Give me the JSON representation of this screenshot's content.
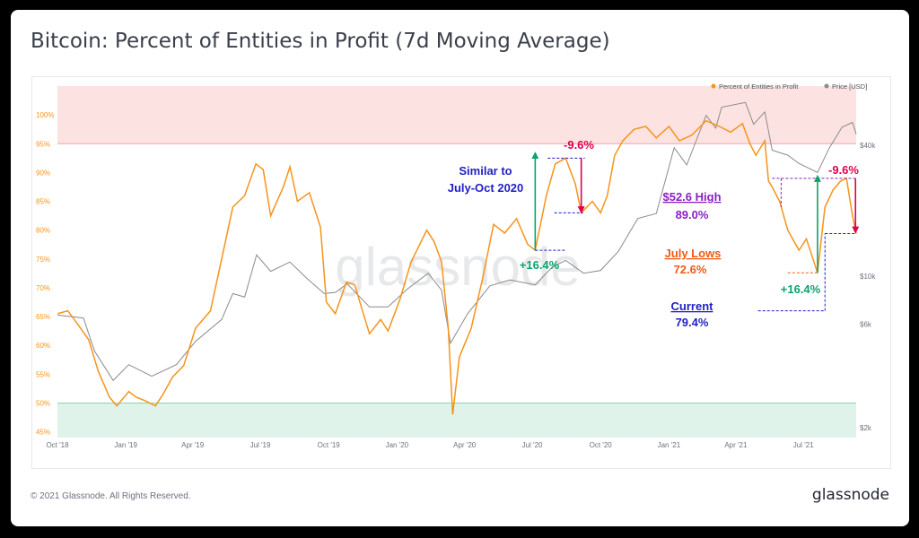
{
  "page": {
    "title": "Bitcoin: Percent of Entities in Profit (7d Moving Average)",
    "footer": "© 2021 Glassnode. All Rights Reserved.",
    "logo": "glassnode",
    "watermark": "glassnode"
  },
  "chart_data": {
    "type": "line",
    "title": "Bitcoin: Percent of Entities in Profit (7d Moving Average)",
    "x_ticks": [
      "Oct '18",
      "Jan '19",
      "Apr '19",
      "Jul '19",
      "Oct '19",
      "Jan '20",
      "Apr '20",
      "Jul '20",
      "Oct '20",
      "Jan '21",
      "Apr '21",
      "Jul '21"
    ],
    "x_range": [
      "2018-10-01",
      "2021-09-10"
    ],
    "left_axis": {
      "ticks": [
        "45%",
        "50%",
        "55%",
        "60%",
        "65%",
        "70%",
        "75%",
        "80%",
        "85%",
        "90%",
        "95%",
        "100%"
      ],
      "range": [
        44,
        105
      ]
    },
    "right_axis": {
      "ticks": [
        "$2k",
        "$6k",
        "$10k",
        "$40k"
      ],
      "scale": "log",
      "range": [
        1800,
        75000
      ]
    },
    "legend": {
      "placement": "top-right",
      "items": [
        {
          "label": "Percent of Entities in Profit",
          "color": "#f7931a"
        },
        {
          "label": "Price [USD]",
          "color": "#8a8a8a"
        }
      ]
    },
    "bands": [
      {
        "from": 95,
        "to": 105,
        "color": "#fde2e2"
      },
      {
        "from": 44,
        "to": 50,
        "color": "#dff3ea"
      }
    ],
    "series": [
      {
        "name": "Percent of Entities in Profit",
        "color": "#f7931a",
        "points": [
          [
            "2018-10-01",
            65.5
          ],
          [
            "2018-10-15",
            66.0
          ],
          [
            "2018-11-01",
            63.0
          ],
          [
            "2018-11-12",
            61.0
          ],
          [
            "2018-11-25",
            55.5
          ],
          [
            "2018-12-10",
            51.0
          ],
          [
            "2018-12-20",
            49.5
          ],
          [
            "2019-01-05",
            52.0
          ],
          [
            "2019-01-15",
            51.0
          ],
          [
            "2019-01-25",
            50.5
          ],
          [
            "2019-02-10",
            49.5
          ],
          [
            "2019-02-20",
            51.5
          ],
          [
            "2019-03-05",
            54.5
          ],
          [
            "2019-03-20",
            56.5
          ],
          [
            "2019-04-05",
            63.0
          ],
          [
            "2019-04-25",
            66.0
          ],
          [
            "2019-05-10",
            75.0
          ],
          [
            "2019-05-25",
            84.0
          ],
          [
            "2019-06-10",
            86.0
          ],
          [
            "2019-06-25",
            91.5
          ],
          [
            "2019-07-05",
            90.5
          ],
          [
            "2019-07-15",
            82.5
          ],
          [
            "2019-08-01",
            87.5
          ],
          [
            "2019-08-10",
            91.0
          ],
          [
            "2019-08-20",
            85.0
          ],
          [
            "2019-09-05",
            86.5
          ],
          [
            "2019-09-20",
            80.5
          ],
          [
            "2019-09-28",
            67.5
          ],
          [
            "2019-10-10",
            65.5
          ],
          [
            "2019-10-25",
            71.0
          ],
          [
            "2019-11-05",
            70.5
          ],
          [
            "2019-11-25",
            62.0
          ],
          [
            "2019-12-10",
            64.5
          ],
          [
            "2019-12-20",
            62.5
          ],
          [
            "2020-01-05",
            68.0
          ],
          [
            "2020-01-20",
            74.5
          ],
          [
            "2020-02-10",
            80.0
          ],
          [
            "2020-02-20",
            78.0
          ],
          [
            "2020-03-01",
            74.5
          ],
          [
            "2020-03-10",
            63.0
          ],
          [
            "2020-03-16",
            48.0
          ],
          [
            "2020-03-25",
            58.0
          ],
          [
            "2020-04-10",
            63.0
          ],
          [
            "2020-04-25",
            71.5
          ],
          [
            "2020-05-10",
            81.0
          ],
          [
            "2020-05-25",
            79.5
          ],
          [
            "2020-06-10",
            82.0
          ],
          [
            "2020-06-25",
            77.5
          ],
          [
            "2020-07-05",
            76.5
          ],
          [
            "2020-07-20",
            86.0
          ],
          [
            "2020-08-01",
            91.5
          ],
          [
            "2020-08-15",
            92.5
          ],
          [
            "2020-08-28",
            88.0
          ],
          [
            "2020-09-05",
            83.0
          ],
          [
            "2020-09-20",
            85.0
          ],
          [
            "2020-10-01",
            83.0
          ],
          [
            "2020-10-10",
            86.0
          ],
          [
            "2020-10-20",
            93.0
          ],
          [
            "2020-10-31",
            95.5
          ],
          [
            "2020-11-15",
            97.5
          ],
          [
            "2020-12-01",
            98.0
          ],
          [
            "2020-12-15",
            96.0
          ],
          [
            "2021-01-01",
            98.0
          ],
          [
            "2021-01-15",
            95.5
          ],
          [
            "2021-02-01",
            96.5
          ],
          [
            "2021-02-20",
            99.0
          ],
          [
            "2021-03-10",
            98.0
          ],
          [
            "2021-03-25",
            97.0
          ],
          [
            "2021-04-10",
            98.5
          ],
          [
            "2021-04-20",
            95.0
          ],
          [
            "2021-04-28",
            93.0
          ],
          [
            "2021-05-10",
            95.5
          ],
          [
            "2021-05-15",
            88.5
          ],
          [
            "2021-05-20",
            87.5
          ],
          [
            "2021-05-30",
            85.0
          ],
          [
            "2021-06-10",
            80.0
          ],
          [
            "2021-06-25",
            76.5
          ],
          [
            "2021-07-05",
            78.5
          ],
          [
            "2021-07-20",
            72.6
          ],
          [
            "2021-07-30",
            84.0
          ],
          [
            "2021-08-10",
            87.0
          ],
          [
            "2021-08-20",
            88.5
          ],
          [
            "2021-08-28",
            89.0
          ],
          [
            "2021-09-05",
            82.5
          ],
          [
            "2021-09-10",
            79.4
          ]
        ]
      },
      {
        "name": "Price [USD]",
        "color": "#8a8a8a",
        "points": [
          [
            "2018-10-01",
            6600
          ],
          [
            "2018-11-05",
            6400
          ],
          [
            "2018-11-20",
            4500
          ],
          [
            "2018-12-15",
            3300
          ],
          [
            "2019-01-05",
            3900
          ],
          [
            "2019-02-05",
            3450
          ],
          [
            "2019-03-10",
            3900
          ],
          [
            "2019-04-05",
            5000
          ],
          [
            "2019-05-10",
            6300
          ],
          [
            "2019-05-25",
            8300
          ],
          [
            "2019-06-10",
            8000
          ],
          [
            "2019-06-26",
            12500
          ],
          [
            "2019-07-15",
            10500
          ],
          [
            "2019-08-10",
            11600
          ],
          [
            "2019-09-01",
            9800
          ],
          [
            "2019-09-25",
            8300
          ],
          [
            "2019-10-10",
            8400
          ],
          [
            "2019-10-26",
            9200
          ],
          [
            "2019-11-25",
            7200
          ],
          [
            "2019-12-20",
            7200
          ],
          [
            "2020-01-15",
            8700
          ],
          [
            "2020-02-12",
            10300
          ],
          [
            "2020-03-01",
            8600
          ],
          [
            "2020-03-13",
            4900
          ],
          [
            "2020-04-05",
            6700
          ],
          [
            "2020-05-05",
            9000
          ],
          [
            "2020-06-01",
            9600
          ],
          [
            "2020-07-05",
            9100
          ],
          [
            "2020-07-28",
            11000
          ],
          [
            "2020-08-15",
            11800
          ],
          [
            "2020-09-08",
            10300
          ],
          [
            "2020-10-01",
            10600
          ],
          [
            "2020-10-25",
            13000
          ],
          [
            "2020-11-20",
            18400
          ],
          [
            "2020-12-15",
            19400
          ],
          [
            "2021-01-08",
            39000
          ],
          [
            "2021-01-25",
            32500
          ],
          [
            "2021-02-20",
            55000
          ],
          [
            "2021-03-05",
            48000
          ],
          [
            "2021-03-13",
            60000
          ],
          [
            "2021-04-14",
            63000
          ],
          [
            "2021-04-25",
            50000
          ],
          [
            "2021-05-10",
            57000
          ],
          [
            "2021-05-20",
            38000
          ],
          [
            "2021-06-10",
            36000
          ],
          [
            "2021-06-25",
            33000
          ],
          [
            "2021-07-20",
            30000
          ],
          [
            "2021-08-05",
            39000
          ],
          [
            "2021-08-22",
            48500
          ],
          [
            "2021-09-05",
            51000
          ],
          [
            "2021-09-10",
            45000
          ]
        ]
      }
    ],
    "annotations": [
      {
        "text": "Similar to",
        "color": "#1f1fc4"
      },
      {
        "text": "July-Oct 2020",
        "color": "#1f1fc4"
      },
      {
        "text": "-9.6%",
        "color": "#e0004d"
      },
      {
        "text": "+16.4%",
        "color": "#0aa36a"
      },
      {
        "text": "$52.6 High",
        "color": "#8b1fc4"
      },
      {
        "text": "89.0%",
        "color": "#8b1fc4"
      },
      {
        "text": "July Lows",
        "color": "#f05a14"
      },
      {
        "text": "72.6%",
        "color": "#f05a14"
      },
      {
        "text": "Current",
        "color": "#1f1fc4"
      },
      {
        "text": "79.4%",
        "color": "#1f1fc4"
      },
      {
        "text": "-9.6%",
        "color": "#e0004d"
      },
      {
        "text": "+16.4%",
        "color": "#0aa36a"
      }
    ]
  }
}
